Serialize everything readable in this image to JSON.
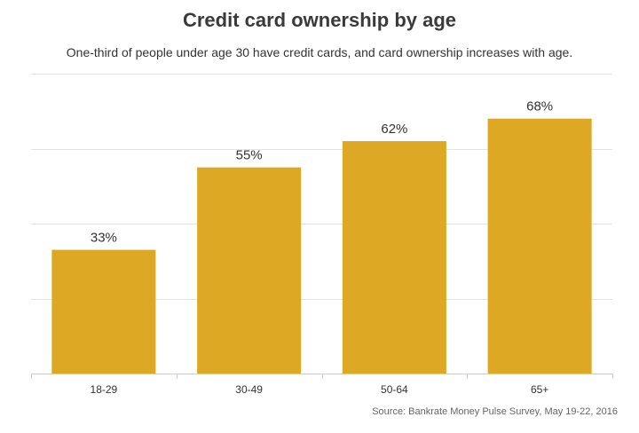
{
  "chart_data": {
    "type": "bar",
    "title": "Credit card ownership by age",
    "subtitle": "One-third of people under age 30 have credit cards, and card ownership increases with age.",
    "categories": [
      "18-29",
      "30-49",
      "50-64",
      "65+"
    ],
    "values": [
      33,
      55,
      62,
      68
    ],
    "value_labels": [
      "33%",
      "55%",
      "62%",
      "68%"
    ],
    "xlabel": "",
    "ylabel": "",
    "ylim": [
      0,
      80
    ],
    "grid": true,
    "legend": "none",
    "bar_color": "#DDA823",
    "grid_color": "#e3e3e3",
    "source": "Source: Bankrate Money Pulse Survey, May 19-22, 2016"
  }
}
